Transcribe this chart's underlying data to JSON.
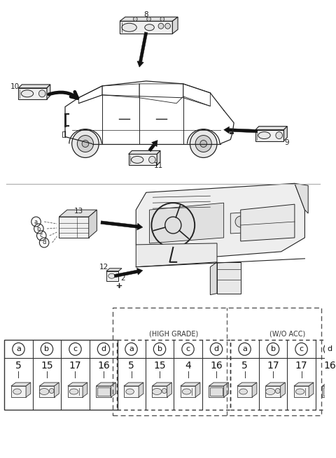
{
  "bg_color": "#ffffff",
  "fig_width": 4.8,
  "fig_height": 6.55,
  "dpi": 100,
  "lc": "#222222",
  "table_standard": {
    "cols": [
      "a",
      "b",
      "c",
      "d"
    ],
    "nums": [
      "5",
      "15",
      "17",
      "16"
    ]
  },
  "table_high_grade": {
    "label": "(HIGH GRADE)",
    "cols": [
      "a",
      "b",
      "c",
      "d"
    ],
    "nums": [
      "5",
      "15",
      "4",
      "16"
    ]
  },
  "table_wo_acc": {
    "label": "(W/O ACC)",
    "cols": [
      "a",
      "b",
      "c",
      "d"
    ],
    "nums": [
      "5",
      "17",
      "17",
      "16"
    ]
  }
}
